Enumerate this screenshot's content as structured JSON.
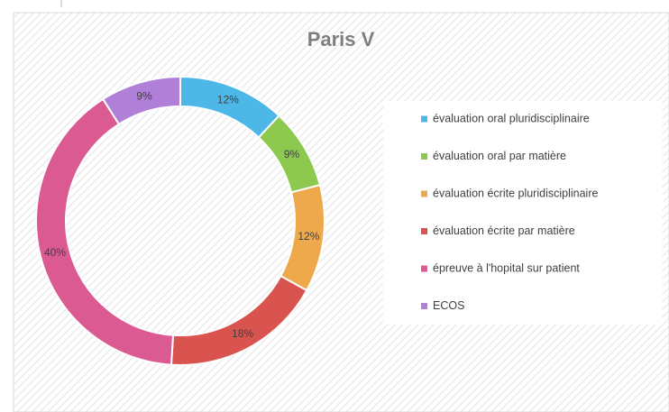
{
  "chart_data": {
    "type": "donut",
    "title": "Paris V",
    "categories": [
      "évaluation oral pluridisciplinaire",
      "évaluation oral par matière",
      "évaluation écrite pluridisciplinaire",
      "évaluation écrite par matière",
      "épreuve à l'hopital sur patient",
      "ECOS"
    ],
    "values": [
      12,
      9,
      12,
      18,
      40,
      9
    ],
    "value_labels": [
      "12%",
      "9%",
      "12%",
      "18%",
      "40%",
      "9%"
    ],
    "colors": [
      "#4db8e8",
      "#8dc94e",
      "#eda94c",
      "#d9534f",
      "#dc5a92",
      "#b07fd8"
    ],
    "legend": "right"
  }
}
